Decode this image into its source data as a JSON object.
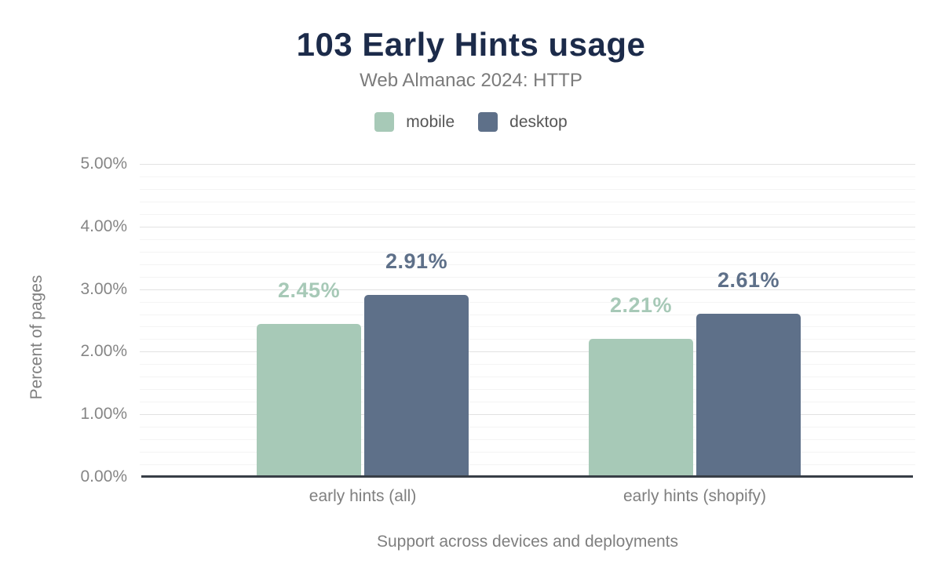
{
  "chart_data": {
    "type": "bar",
    "title": "103 Early Hints usage",
    "subtitle": "Web Almanac 2024: HTTP",
    "categories": [
      "early hints (all)",
      "early hints (shopify)"
    ],
    "series": [
      {
        "name": "mobile",
        "color": "#a7c9b7",
        "values": [
          2.45,
          2.21
        ],
        "data_labels": [
          "2.45%",
          "2.21%"
        ]
      },
      {
        "name": "desktop",
        "color": "#5e7089",
        "values": [
          2.91,
          2.61
        ],
        "data_labels": [
          "2.91%",
          "2.61%"
        ]
      }
    ],
    "xlabel": "Support across devices and deployments",
    "ylabel": "Percent of pages",
    "ylim": [
      0,
      5
    ],
    "ytick_labels": [
      "0.00%",
      "1.00%",
      "2.00%",
      "3.00%",
      "4.00%",
      "5.00%"
    ],
    "major_grid_step": 1.0,
    "minor_grid_step": 0.2,
    "grid": "horizontal",
    "legend_position": "top"
  }
}
